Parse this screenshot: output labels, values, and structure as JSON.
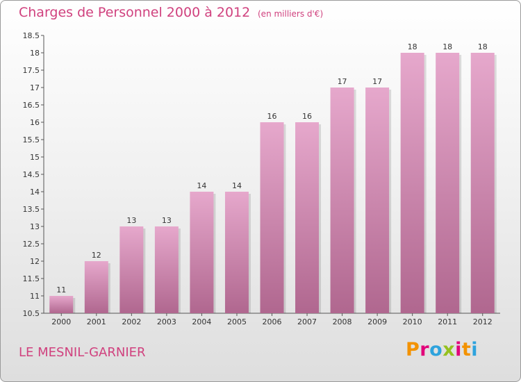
{
  "header": {
    "title": "Charges de Personnel 2000 à 2012",
    "subtitle": "(en milliers d'€)"
  },
  "footer": {
    "town": "LE MESNIL-GARNIER",
    "logo": "Proxiti"
  },
  "colors": {
    "accent": "#d0417e",
    "bar_top": "#e6a8cc",
    "bar_bottom": "#b0678f",
    "logo_letters": [
      "#f39200",
      "#e2007a",
      "#2ea3dd",
      "#95c11f",
      "#e2007a",
      "#f39200",
      "#2ea3dd"
    ]
  },
  "chart_data": {
    "type": "bar",
    "title": "Charges de Personnel 2000 à 2012",
    "subtitle": "(en milliers d'€)",
    "categories": [
      "2000",
      "2001",
      "2002",
      "2003",
      "2004",
      "2005",
      "2006",
      "2007",
      "2008",
      "2009",
      "2010",
      "2011",
      "2012"
    ],
    "values": [
      11,
      12,
      13,
      13,
      14,
      14,
      16,
      16,
      17,
      17,
      18,
      18,
      18
    ],
    "ylim": [
      10.5,
      18.5
    ],
    "yticks": [
      "10.5",
      "11",
      "11.5",
      "12",
      "12.5",
      "13",
      "13.5",
      "14",
      "14.5",
      "15",
      "15.5",
      "16",
      "16.5",
      "17",
      "17.5",
      "18",
      "18.5"
    ],
    "xlabel": "",
    "ylabel": "",
    "grid": false,
    "legend": "none"
  }
}
